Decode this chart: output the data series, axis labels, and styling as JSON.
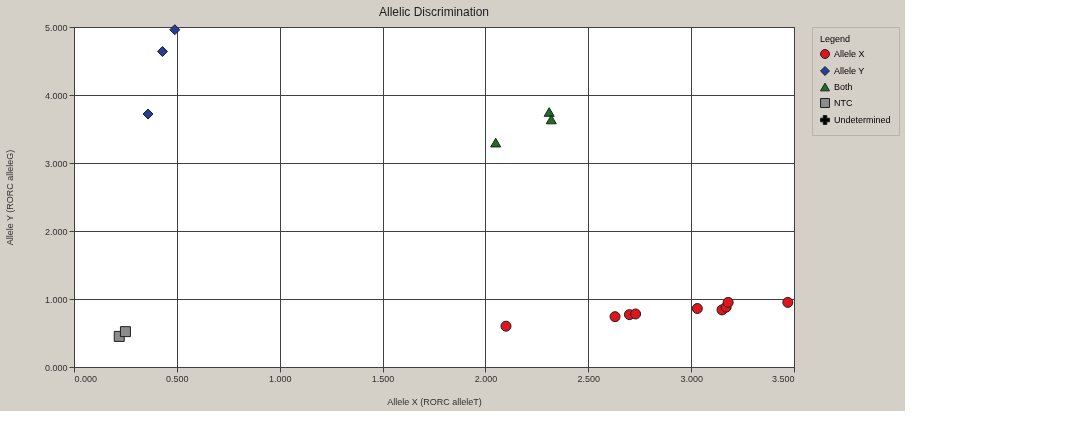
{
  "chart_data": {
    "type": "scatter",
    "title": "Allelic Discrimination",
    "xlabel": "Allele X (RORC alleleT)",
    "ylabel": "Allele Y (RORC alleleG)",
    "legend_title": "Legend",
    "legend": "top right",
    "grid": true,
    "xlim": [
      0,
      3.5
    ],
    "ylim": [
      0,
      5
    ],
    "xticks": [
      {
        "value": 0,
        "label": "0.000"
      },
      {
        "value": 0.5,
        "label": "0.500"
      },
      {
        "value": 1,
        "label": "1.000"
      },
      {
        "value": 1.5,
        "label": "1.500"
      },
      {
        "value": 2,
        "label": "2.000"
      },
      {
        "value": 2.5,
        "label": "2.500"
      },
      {
        "value": 3,
        "label": "3.000"
      },
      {
        "value": 3.5,
        "label": "3.500"
      }
    ],
    "yticks": [
      {
        "value": 0,
        "label": "0.000"
      },
      {
        "value": 1,
        "label": "1.000"
      },
      {
        "value": 2,
        "label": "2.000"
      },
      {
        "value": 3,
        "label": "3.000"
      },
      {
        "value": 4,
        "label": "4.000"
      },
      {
        "value": 5,
        "label": "5.000"
      }
    ],
    "series": [
      {
        "name": "Allele X",
        "color": "#e0141c",
        "marker": "circle",
        "x": [
          2.1,
          2.63,
          2.7,
          2.73,
          3.03,
          3.15,
          3.17,
          3.18,
          3.47
        ],
        "values": [
          0.6,
          0.74,
          0.77,
          0.78,
          0.86,
          0.84,
          0.88,
          0.95,
          0.95
        ]
      },
      {
        "name": "Allele Y",
        "color": "#283c9a",
        "marker": "diamond",
        "x": [
          0.36,
          0.43,
          0.49
        ],
        "values": [
          3.72,
          4.64,
          4.96
        ]
      },
      {
        "name": "Both",
        "color": "#1a6e2a",
        "marker": "triangle",
        "x": [
          2.05,
          2.31,
          2.32
        ],
        "values": [
          3.3,
          3.75,
          3.64
        ]
      },
      {
        "name": "NTC",
        "color": "#8c8c8c",
        "marker": "square",
        "x": [
          0.22,
          0.25
        ],
        "values": [
          0.45,
          0.52
        ]
      },
      {
        "name": "Undetermined",
        "color": "#000000",
        "marker": "cross"
      }
    ]
  }
}
